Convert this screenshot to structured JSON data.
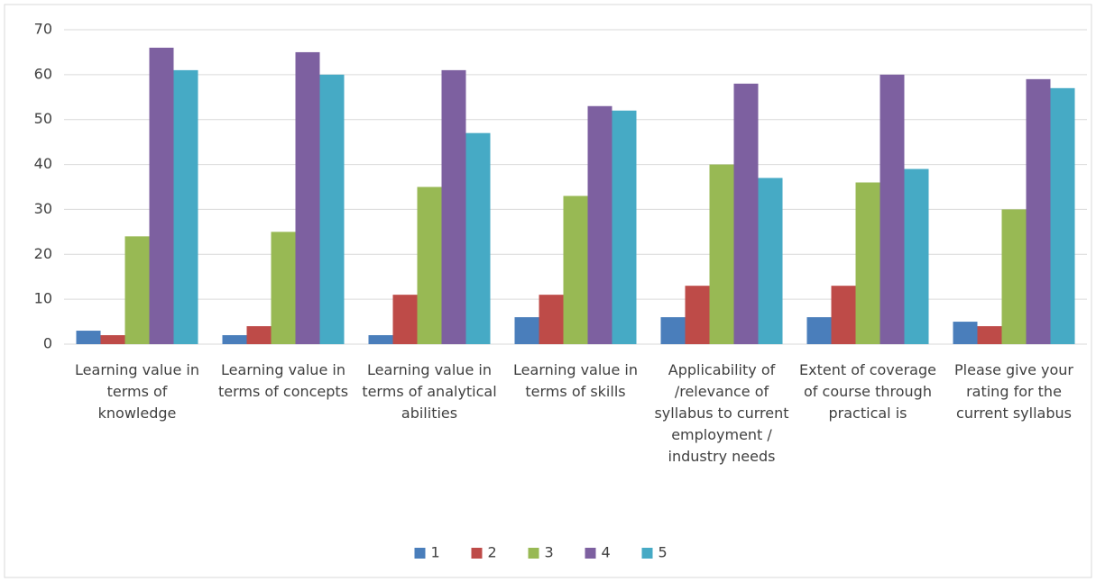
{
  "chart_data": {
    "type": "bar",
    "categories": [
      "Learning value in terms of knowledge",
      "Learning value in terms of concepts",
      "Learning value in terms of analytical abilities",
      "Learning value in terms of skills",
      "Applicability of /relevance of syllabus to current employment / industry needs",
      "Extent of coverage of course through practical is",
      "Please give your rating for the current syllabus"
    ],
    "series": [
      {
        "name": "1",
        "color": "#4a7ebb",
        "values": [
          3,
          2,
          2,
          6,
          6,
          6,
          5
        ]
      },
      {
        "name": "2",
        "color": "#be4b48",
        "values": [
          2,
          4,
          11,
          11,
          13,
          13,
          4
        ]
      },
      {
        "name": "3",
        "color": "#98b954",
        "values": [
          24,
          25,
          35,
          33,
          40,
          36,
          30
        ]
      },
      {
        "name": "4",
        "color": "#7d60a0",
        "values": [
          66,
          65,
          61,
          53,
          58,
          60,
          59
        ]
      },
      {
        "name": "5",
        "color": "#46aac5",
        "values": [
          61,
          60,
          47,
          52,
          37,
          39,
          57
        ]
      }
    ],
    "ylim": [
      0,
      70
    ],
    "yticks": [
      0,
      10,
      20,
      30,
      40,
      50,
      60,
      70
    ],
    "grid": true,
    "legend": "bottom"
  }
}
